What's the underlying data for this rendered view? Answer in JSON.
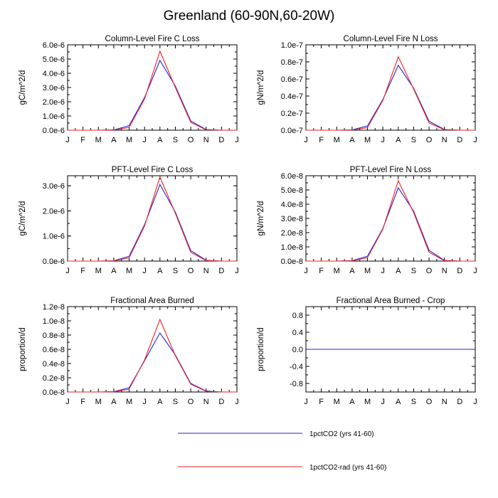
{
  "title": "Greenland (60-90N,60-20W)",
  "colors": {
    "series1": "#2222dd",
    "series2": "#ee2222",
    "axis": "#000000"
  },
  "legend": {
    "placement": "bottom-center",
    "items": [
      {
        "label": "1pctCO2 (yrs 41-60)",
        "color": "#2222dd"
      },
      {
        "label": "1pctCO2-rad (yrs 41-60)",
        "color": "#ee2222"
      }
    ]
  },
  "chart_data": [
    {
      "type": "line",
      "title": "Column-Level Fire C Loss",
      "ylabel": "gC/m^2/d",
      "xticks": [
        "J",
        "F",
        "M",
        "A",
        "M",
        "J",
        "A",
        "S",
        "O",
        "N",
        "D",
        "J"
      ],
      "x": [
        1,
        2,
        3,
        4,
        5,
        6,
        7,
        8,
        9,
        10,
        11,
        12
      ],
      "ylim": [
        0,
        6e-06
      ],
      "yticks": [
        0,
        1e-06,
        2e-06,
        3e-06,
        4e-06,
        5e-06,
        6e-06
      ],
      "yticklabels": [
        "0.0e-6",
        "1.0e-6",
        "2.0e-6",
        "3.0e-6",
        "4.0e-6",
        "5.0e-6",
        "6.0e-6"
      ],
      "series": [
        {
          "name": "1pctCO2 (yrs 41-60)",
          "color": "#2222dd",
          "values": [
            0,
            0,
            0,
            2e-08,
            3.2e-07,
            2.3e-06,
            4.9e-06,
            3.1e-06,
            6.5e-07,
            5e-08,
            0,
            0
          ]
        },
        {
          "name": "1pctCO2-rad (yrs 41-60)",
          "color": "#ee2222",
          "values": [
            0,
            0,
            0,
            1e-08,
            2e-07,
            2.2e-06,
            5.55e-06,
            3e-06,
            5.5e-07,
            3e-08,
            0,
            0
          ]
        }
      ]
    },
    {
      "type": "line",
      "title": "Column-Level Fire N Loss",
      "ylabel": "gN/m^2/d",
      "xticks": [
        "J",
        "F",
        "M",
        "A",
        "M",
        "J",
        "A",
        "S",
        "O",
        "N",
        "D",
        "J"
      ],
      "x": [
        1,
        2,
        3,
        4,
        5,
        6,
        7,
        8,
        9,
        10,
        11,
        12
      ],
      "ylim": [
        0,
        1e-07
      ],
      "yticks": [
        0,
        2e-08,
        4e-08,
        6e-08,
        8e-08,
        1e-07
      ],
      "yticklabels": [
        "0.0e-7",
        "0.2e-7",
        "0.4e-7",
        "0.6e-7",
        "0.8e-7",
        "1.0e-7"
      ],
      "series": [
        {
          "name": "1pctCO2 (yrs 41-60)",
          "color": "#2222dd",
          "values": [
            0,
            0,
            0,
            4e-10,
            5e-09,
            3.6e-08,
            7.6e-08,
            4.9e-08,
            1.05e-08,
            8e-10,
            0,
            0
          ]
        },
        {
          "name": "1pctCO2-rad (yrs 41-60)",
          "color": "#ee2222",
          "values": [
            0,
            0,
            0,
            2e-10,
            3e-09,
            3.5e-08,
            8.6e-08,
            4.8e-08,
            8.5e-09,
            5e-10,
            0,
            0
          ]
        }
      ]
    },
    {
      "type": "line",
      "title": "PFT-Level Fire C Loss",
      "ylabel": "gC/m^2/d",
      "xticks": [
        "J",
        "F",
        "M",
        "A",
        "M",
        "J",
        "A",
        "S",
        "O",
        "N",
        "D",
        "J"
      ],
      "x": [
        1,
        2,
        3,
        4,
        5,
        6,
        7,
        8,
        9,
        10,
        11,
        12
      ],
      "ylim": [
        0,
        3.4e-06
      ],
      "yticks": [
        0,
        1e-06,
        2e-06,
        3e-06
      ],
      "yticklabels": [
        "0.0e-6",
        "1.0e-6",
        "2.0e-6",
        "3.0e-6"
      ],
      "series": [
        {
          "name": "1pctCO2 (yrs 41-60)",
          "color": "#2222dd",
          "values": [
            0,
            0,
            0,
            1.5e-08,
            1.9e-07,
            1.45e-06,
            3.05e-06,
            1.95e-06,
            4.2e-07,
            3e-08,
            0,
            0
          ]
        },
        {
          "name": "1pctCO2-rad (yrs 41-60)",
          "color": "#ee2222",
          "values": [
            0,
            0,
            0,
            8e-09,
            1.3e-07,
            1.4e-06,
            3.35e-06,
            1.9e-06,
            3.5e-07,
            2e-08,
            0,
            0
          ]
        }
      ]
    },
    {
      "type": "line",
      "title": "PFT-Level Fire N Loss",
      "ylabel": "gN/m^2/d",
      "xticks": [
        "J",
        "F",
        "M",
        "A",
        "M",
        "J",
        "A",
        "S",
        "O",
        "N",
        "D",
        "J"
      ],
      "x": [
        1,
        2,
        3,
        4,
        5,
        6,
        7,
        8,
        9,
        10,
        11,
        12
      ],
      "ylim": [
        0,
        6e-08
      ],
      "yticks": [
        0,
        1e-08,
        2e-08,
        3e-08,
        4e-08,
        5e-08,
        6e-08
      ],
      "yticklabels": [
        "0.0e-8",
        "1.0e-8",
        "2.0e-8",
        "3.0e-8",
        "4.0e-8",
        "5.0e-8",
        "6.0e-8"
      ],
      "series": [
        {
          "name": "1pctCO2 (yrs 41-60)",
          "color": "#2222dd",
          "values": [
            0,
            0,
            0,
            3e-10,
            3.4e-09,
            2.3e-08,
            5.15e-08,
            3.5e-08,
            7.5e-09,
            5e-10,
            0,
            0
          ]
        },
        {
          "name": "1pctCO2-rad (yrs 41-60)",
          "color": "#ee2222",
          "values": [
            0,
            0,
            0,
            1.5e-10,
            2.4e-09,
            2.25e-08,
            5.65e-08,
            3.4e-08,
            6.2e-09,
            3e-10,
            0,
            0
          ]
        }
      ]
    },
    {
      "type": "line",
      "title": "Fractional Area Burned",
      "ylabel": "proportion/d",
      "xticks": [
        "J",
        "F",
        "M",
        "A",
        "M",
        "J",
        "A",
        "S",
        "O",
        "N",
        "D",
        "J"
      ],
      "x": [
        1,
        2,
        3,
        4,
        5,
        6,
        7,
        8,
        9,
        10,
        11,
        12
      ],
      "ylim": [
        0,
        1.2e-08
      ],
      "yticks": [
        0,
        2e-09,
        4e-09,
        6e-09,
        8e-09,
        1e-08,
        1.2e-08
      ],
      "yticklabels": [
        "0.0e-8",
        "0.2e-8",
        "0.4e-8",
        "0.6e-8",
        "0.8e-8",
        "1.0e-8",
        "1.2e-8"
      ],
      "series": [
        {
          "name": "1pctCO2 (yrs 41-60)",
          "color": "#2222dd",
          "values": [
            0,
            0,
            0,
            5e-11,
            6e-10,
            4.4e-09,
            8.3e-09,
            5.2e-09,
            1.2e-09,
            1.5e-10,
            0,
            0
          ]
        },
        {
          "name": "1pctCO2-rad (yrs 41-60)",
          "color": "#ee2222",
          "values": [
            0,
            0,
            0,
            2e-11,
            4e-10,
            4.5e-09,
            1.02e-08,
            5.1e-09,
            1.1e-09,
            1e-10,
            0,
            0
          ]
        }
      ]
    },
    {
      "type": "line",
      "title": "Fractional Area Burned - Crop",
      "ylabel": "proportion/d",
      "xticks": [
        "J",
        "F",
        "M",
        "A",
        "M",
        "J",
        "A",
        "S",
        "O",
        "N",
        "D",
        "J"
      ],
      "x": [
        1,
        2,
        3,
        4,
        5,
        6,
        7,
        8,
        9,
        10,
        11,
        12
      ],
      "ylim": [
        -1.0,
        1.0
      ],
      "yticks": [
        -0.8,
        -0.4,
        0.0,
        0.4,
        0.8
      ],
      "yticklabels": [
        "-0.8",
        "-0.4",
        "0.0",
        "0.4",
        "0.8"
      ],
      "series": [
        {
          "name": "1pctCO2-rad (yrs 41-60)",
          "color": "#ee2222",
          "values": [
            0,
            0,
            0,
            0,
            0,
            0,
            0,
            0,
            0,
            0,
            0,
            0
          ]
        },
        {
          "name": "1pctCO2 (yrs 41-60)",
          "color": "#2222dd",
          "values": [
            0,
            0,
            0,
            0,
            0,
            0,
            0,
            0,
            0,
            0,
            0,
            0
          ]
        }
      ]
    }
  ]
}
